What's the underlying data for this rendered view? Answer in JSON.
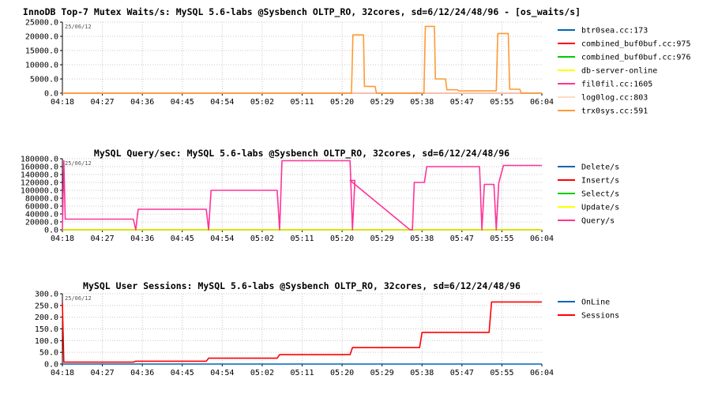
{
  "chart_data": [
    {
      "type": "line",
      "title": "InnoDB Top-7 Mutex Waits/s: MySQL 5.6-labs @Sysbench OLTP_RO, 32cores, sd=6/12/24/48/96 - [os_waits/s]",
      "date_stamp": "25/06/12",
      "x_ticks": [
        "04:18",
        "04:27",
        "04:36",
        "04:45",
        "04:54",
        "05:02",
        "05:11",
        "05:20",
        "05:29",
        "05:38",
        "05:47",
        "05:55",
        "06:04"
      ],
      "y_ticks": [
        "0.0",
        "5000.0",
        "10000.0",
        "15000.0",
        "20000.0",
        "25000.0"
      ],
      "ylim": [
        0,
        25000
      ],
      "grid": true,
      "legend_position": "right",
      "series": [
        {
          "name": "btr0sea.cc:173",
          "color": "#0066b3",
          "x": [
            0,
            1
          ],
          "y": [
            0,
            0
          ]
        },
        {
          "name": "combined_buf0buf.cc:975",
          "color": "#ff0000",
          "x": [
            0,
            1
          ],
          "y": [
            0,
            0
          ]
        },
        {
          "name": "combined_buf0buf.cc:976",
          "color": "#00cc00",
          "x": [
            0,
            1
          ],
          "y": [
            0,
            0
          ]
        },
        {
          "name": "db-server-online",
          "color": "#ffff00",
          "x": [
            0,
            1
          ],
          "y": [
            0,
            0
          ]
        },
        {
          "name": "fil0fil.cc:1605",
          "color": "#ff3399",
          "x": [
            0,
            1
          ],
          "y": [
            0,
            0
          ]
        },
        {
          "name": "log0log.cc:803",
          "color": "#ffd7c9",
          "x": [
            0,
            0.724,
            0.73,
            0.74,
            0.742,
            1
          ],
          "y": [
            0,
            0,
            200,
            250,
            0,
            0
          ]
        },
        {
          "name": "trx0sys.cc:591",
          "color": "#ff9933",
          "x": [
            0,
            0.603,
            0.606,
            0.628,
            0.63,
            0.652,
            0.655,
            0.754,
            0.757,
            0.776,
            0.778,
            0.799,
            0.802,
            0.824,
            0.827,
            0.905,
            0.908,
            0.93,
            0.933,
            0.954,
            0.957,
            1
          ],
          "y": [
            0,
            0,
            20500,
            20500,
            2400,
            2400,
            0,
            0,
            23500,
            23500,
            5000,
            5000,
            1200,
            1200,
            800,
            800,
            21000,
            21000,
            1400,
            1400,
            0,
            0
          ]
        }
      ]
    },
    {
      "type": "line",
      "title": "MySQL Query/sec: MySQL 5.6-labs @Sysbench OLTP_RO, 32cores, sd=6/12/24/48/96",
      "date_stamp": "25/06/12",
      "x_ticks": [
        "04:18",
        "04:27",
        "04:36",
        "04:45",
        "04:54",
        "05:02",
        "05:11",
        "05:20",
        "05:29",
        "05:38",
        "05:47",
        "05:55",
        "06:04"
      ],
      "y_ticks": [
        "0.0",
        "20000.0",
        "40000.0",
        "60000.0",
        "80000.0",
        "100000.0",
        "120000.0",
        "140000.0",
        "160000.0",
        "180000.0"
      ],
      "ylim": [
        0,
        180000
      ],
      "grid": true,
      "legend_position": "right",
      "series": [
        {
          "name": "Delete/s",
          "color": "#0066b3",
          "x": [
            0,
            1
          ],
          "y": [
            0,
            0
          ]
        },
        {
          "name": "Insert/s",
          "color": "#ff0000",
          "x": [
            0,
            1
          ],
          "y": [
            0,
            0
          ]
        },
        {
          "name": "Select/s",
          "color": "#00cc00",
          "x": [
            0,
            1
          ],
          "y": [
            0,
            0
          ]
        },
        {
          "name": "Update/s",
          "color": "#ffff00",
          "x": [
            0,
            1
          ],
          "y": [
            0,
            0
          ]
        },
        {
          "name": "Query/s",
          "color": "#ff3399",
          "x": [
            0,
            0.003,
            0.006,
            0.148,
            0.153,
            0.158,
            0.3,
            0.305,
            0.31,
            0.448,
            0.453,
            0.458,
            0.6,
            0.605,
            0.61,
            0.6,
            0.725,
            0.73,
            0.734,
            0.755,
            0.76,
            0.87,
            0.875,
            0.88,
            0.9,
            0.905,
            0.91,
            0.92,
            1
          ],
          "y": [
            0,
            175000,
            27000,
            27000,
            0,
            52000,
            52000,
            0,
            100000,
            100000,
            0,
            175000,
            175000,
            0,
            125000,
            125000,
            0,
            0,
            120000,
            120000,
            160000,
            160000,
            0,
            115000,
            115000,
            0,
            118000,
            163000,
            163000
          ]
        }
      ]
    },
    {
      "type": "line",
      "title": "MySQL User Sessions: MySQL 5.6-labs @Sysbench OLTP_RO, 32cores, sd=6/12/24/48/96",
      "date_stamp": "25/06/12",
      "x_ticks": [
        "04:18",
        "04:27",
        "04:36",
        "04:45",
        "04:54",
        "05:02",
        "05:11",
        "05:20",
        "05:29",
        "05:38",
        "05:47",
        "05:55",
        "06:04"
      ],
      "y_ticks": [
        "0.0",
        "50.0",
        "100.0",
        "150.0",
        "200.0",
        "250.0",
        "300.0"
      ],
      "ylim": [
        0,
        300
      ],
      "grid": true,
      "legend_position": "right",
      "series": [
        {
          "name": "OnLine",
          "color": "#0066b3",
          "x": [
            0,
            1
          ],
          "y": [
            0,
            0
          ]
        },
        {
          "name": "Sessions",
          "color": "#ff0000",
          "x": [
            0,
            0.003,
            0.006,
            0.148,
            0.153,
            0.3,
            0.305,
            0.448,
            0.453,
            0.6,
            0.605,
            0.745,
            0.75,
            0.89,
            0.895,
            1
          ],
          "y": [
            260,
            8,
            8,
            8,
            12,
            12,
            25,
            25,
            40,
            40,
            70,
            70,
            135,
            135,
            265,
            265
          ]
        }
      ]
    }
  ]
}
